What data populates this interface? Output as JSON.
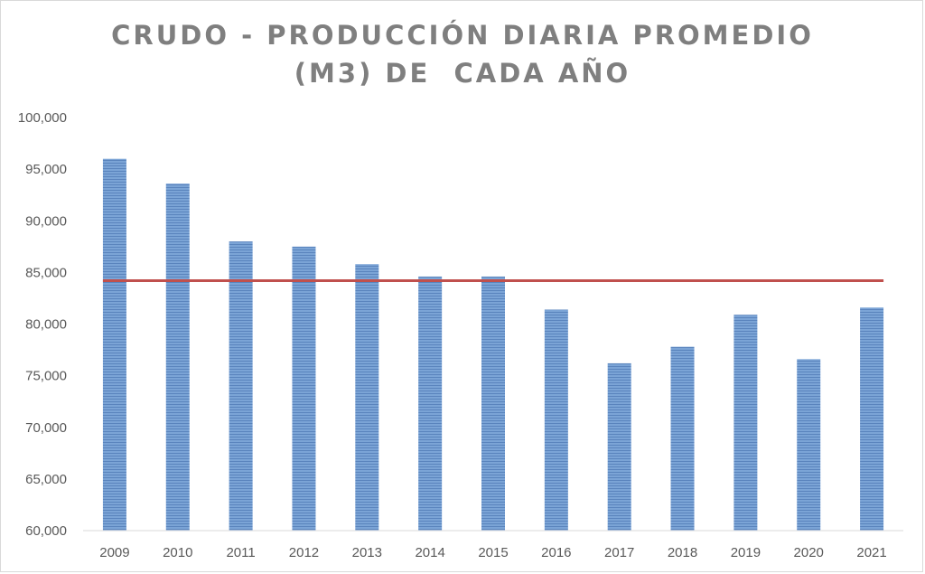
{
  "chart_data": {
    "type": "bar",
    "title_lines": [
      "CRUDO - PRODUCCIÓN DIARIA PROMEDIO",
      "(M3) DE  CADA AÑO"
    ],
    "categories": [
      "2009",
      "2010",
      "2011",
      "2012",
      "2013",
      "2014",
      "2015",
      "2016",
      "2017",
      "2018",
      "2019",
      "2020",
      "2021"
    ],
    "values": [
      96000,
      93600,
      88000,
      87500,
      85800,
      84600,
      84600,
      81400,
      76200,
      77800,
      80900,
      76600,
      81600
    ],
    "reference_line_value": 84200,
    "ylim": [
      60000,
      100000
    ],
    "yticks": [
      "60,000",
      "65,000",
      "70,000",
      "75,000",
      "80,000",
      "85,000",
      "90,000",
      "95,000",
      "100,000"
    ],
    "ytick_values": [
      60000,
      65000,
      70000,
      75000,
      80000,
      85000,
      90000,
      95000,
      100000
    ],
    "grid": false,
    "colors": {
      "bar": "#7ba4d6",
      "bar_stripe": "#5a84bd",
      "reference_line": "#c0504d",
      "title": "#7f7f7f",
      "tick": "#595959"
    }
  }
}
